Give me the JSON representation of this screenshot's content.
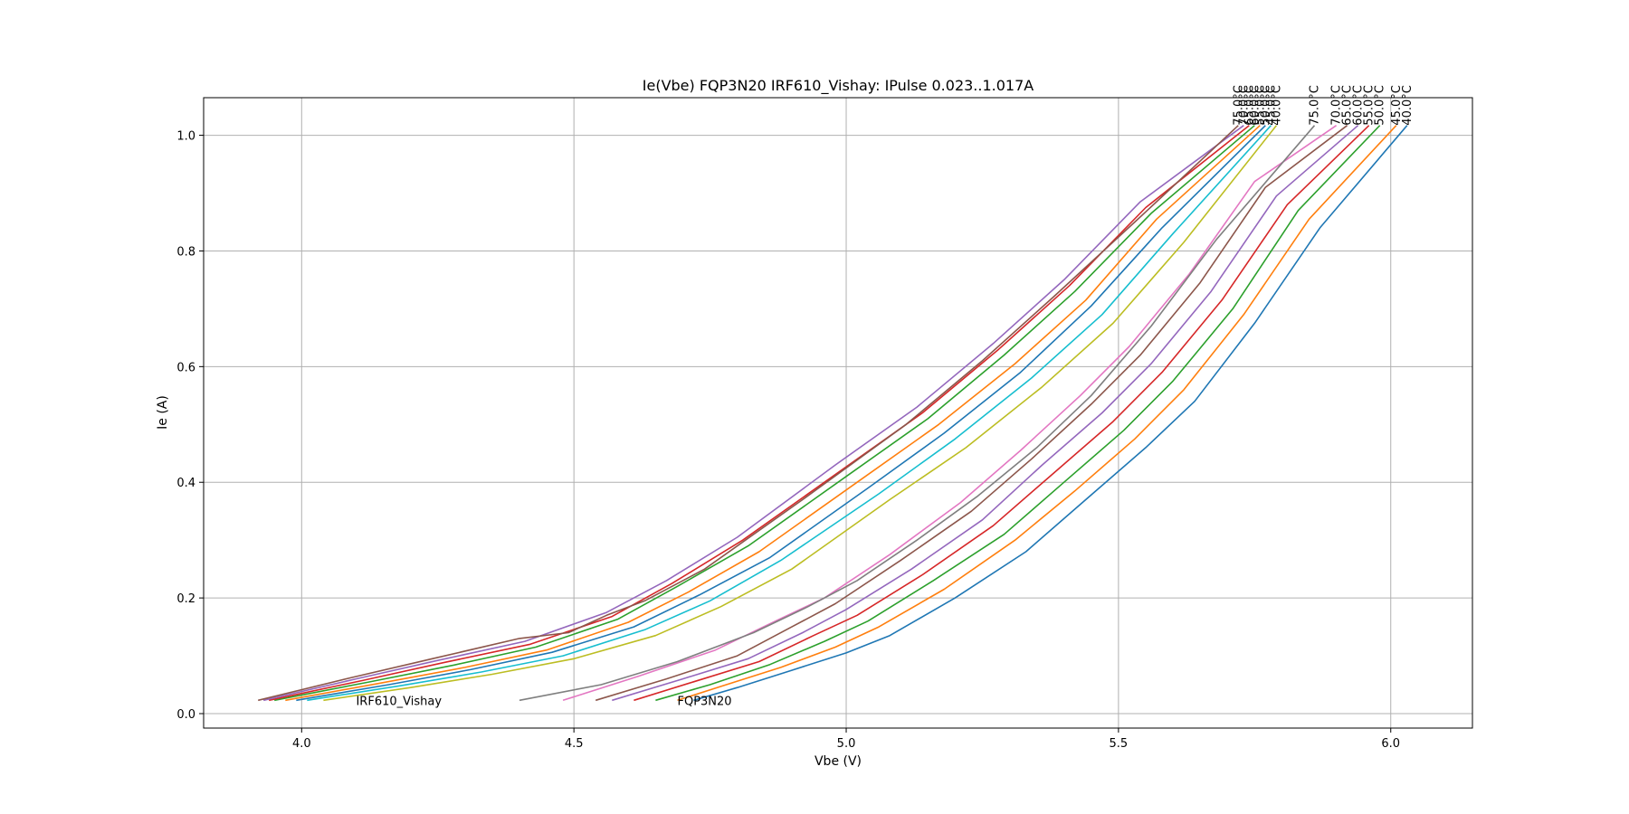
{
  "chart_data": {
    "type": "line",
    "title": "Ie(Vbe) FQP3N20 IRF610_Vishay: IPulse 0.023..1.017A",
    "xlabel": "Vbe (V)",
    "ylabel": "Ie (A)",
    "xlim": [
      3.82,
      6.15
    ],
    "ylim": [
      -0.025,
      1.065
    ],
    "xticks": [
      "4.0",
      "4.5",
      "5.0",
      "5.5",
      "6.0"
    ],
    "yticks": [
      "0.0",
      "0.2",
      "0.4",
      "0.6",
      "0.8",
      "1.0"
    ],
    "grid": true,
    "annotations": [
      {
        "text": "IRF610_Vishay",
        "x": 4.1,
        "y": 0.023
      },
      {
        "text": "FQP3N20",
        "x": 4.69,
        "y": 0.023
      }
    ],
    "series": [
      {
        "group": "FQP3N20",
        "label": "40.0°C",
        "color": "#1f77b4",
        "points": [
          [
            4.72,
            0.023
          ],
          [
            4.8,
            0.045
          ],
          [
            4.9,
            0.075
          ],
          [
            5.0,
            0.105
          ],
          [
            5.08,
            0.135
          ],
          [
            5.2,
            0.2
          ],
          [
            5.33,
            0.28
          ],
          [
            5.44,
            0.37
          ],
          [
            5.55,
            0.46
          ],
          [
            5.64,
            0.54
          ],
          [
            5.75,
            0.675
          ],
          [
            5.87,
            0.84
          ],
          [
            6.03,
            1.017
          ]
        ]
      },
      {
        "group": "FQP3N20",
        "label": "45.0°C",
        "color": "#ff7f0e",
        "points": [
          [
            4.69,
            0.023
          ],
          [
            4.78,
            0.05
          ],
          [
            4.88,
            0.08
          ],
          [
            4.98,
            0.115
          ],
          [
            5.06,
            0.15
          ],
          [
            5.18,
            0.215
          ],
          [
            5.31,
            0.3
          ],
          [
            5.42,
            0.385
          ],
          [
            5.53,
            0.475
          ],
          [
            5.62,
            0.56
          ],
          [
            5.73,
            0.69
          ],
          [
            5.85,
            0.855
          ],
          [
            6.01,
            1.017
          ]
        ]
      },
      {
        "group": "FQP3N20",
        "label": "50.0°C",
        "color": "#2ca02c",
        "points": [
          [
            4.65,
            0.023
          ],
          [
            4.75,
            0.05
          ],
          [
            4.86,
            0.085
          ],
          [
            4.96,
            0.125
          ],
          [
            5.04,
            0.16
          ],
          [
            5.16,
            0.23
          ],
          [
            5.29,
            0.31
          ],
          [
            5.4,
            0.4
          ],
          [
            5.51,
            0.49
          ],
          [
            5.6,
            0.575
          ],
          [
            5.71,
            0.7
          ],
          [
            5.83,
            0.87
          ],
          [
            5.98,
            1.017
          ]
        ]
      },
      {
        "group": "FQP3N20",
        "label": "55.0°C",
        "color": "#d62728",
        "points": [
          [
            4.61,
            0.023
          ],
          [
            4.72,
            0.055
          ],
          [
            4.84,
            0.09
          ],
          [
            4.94,
            0.135
          ],
          [
            5.02,
            0.17
          ],
          [
            5.14,
            0.24
          ],
          [
            5.27,
            0.325
          ],
          [
            5.38,
            0.415
          ],
          [
            5.49,
            0.505
          ],
          [
            5.58,
            0.59
          ],
          [
            5.69,
            0.715
          ],
          [
            5.81,
            0.88
          ],
          [
            5.96,
            1.017
          ]
        ]
      },
      {
        "group": "FQP3N20",
        "label": "60.0°C",
        "color": "#9467bd",
        "points": [
          [
            4.57,
            0.023
          ],
          [
            4.7,
            0.06
          ],
          [
            4.82,
            0.095
          ],
          [
            4.92,
            0.14
          ],
          [
            5.0,
            0.18
          ],
          [
            5.12,
            0.25
          ],
          [
            5.25,
            0.335
          ],
          [
            5.36,
            0.43
          ],
          [
            5.47,
            0.52
          ],
          [
            5.56,
            0.605
          ],
          [
            5.67,
            0.73
          ],
          [
            5.79,
            0.895
          ],
          [
            5.94,
            1.017
          ]
        ]
      },
      {
        "group": "FQP3N20",
        "label": "65.0°C",
        "color": "#8c564b",
        "points": [
          [
            4.54,
            0.023
          ],
          [
            4.67,
            0.06
          ],
          [
            4.8,
            0.1
          ],
          [
            4.9,
            0.15
          ],
          [
            4.98,
            0.19
          ],
          [
            5.1,
            0.265
          ],
          [
            5.23,
            0.35
          ],
          [
            5.34,
            0.44
          ],
          [
            5.45,
            0.535
          ],
          [
            5.54,
            0.62
          ],
          [
            5.65,
            0.745
          ],
          [
            5.77,
            0.91
          ],
          [
            5.92,
            1.017
          ]
        ]
      },
      {
        "group": "FQP3N20",
        "label": "70.0°C",
        "color": "#e377c2",
        "points": [
          [
            4.48,
            0.023
          ],
          [
            4.62,
            0.065
          ],
          [
            4.76,
            0.11
          ],
          [
            4.87,
            0.16
          ],
          [
            4.96,
            0.2
          ],
          [
            5.08,
            0.275
          ],
          [
            5.21,
            0.365
          ],
          [
            5.32,
            0.455
          ],
          [
            5.43,
            0.55
          ],
          [
            5.52,
            0.635
          ],
          [
            5.63,
            0.76
          ],
          [
            5.75,
            0.92
          ],
          [
            5.9,
            1.017
          ]
        ]
      },
      {
        "group": "FQP3N20",
        "label": "75.0°C",
        "color": "#7f7f7f",
        "points": [
          [
            4.4,
            0.023
          ],
          [
            4.55,
            0.05
          ],
          [
            4.69,
            0.09
          ],
          [
            4.83,
            0.14
          ],
          [
            4.93,
            0.185
          ],
          [
            5.02,
            0.23
          ],
          [
            5.13,
            0.3
          ],
          [
            5.24,
            0.375
          ],
          [
            5.35,
            0.46
          ],
          [
            5.45,
            0.55
          ],
          [
            5.56,
            0.67
          ],
          [
            5.68,
            0.82
          ],
          [
            5.86,
            1.017
          ]
        ]
      },
      {
        "group": "IRF610_Vishay",
        "label": "40.0°C",
        "color": "#bcbd22",
        "points": [
          [
            4.04,
            0.023
          ],
          [
            4.2,
            0.045
          ],
          [
            4.35,
            0.068
          ],
          [
            4.5,
            0.095
          ],
          [
            4.65,
            0.135
          ],
          [
            4.77,
            0.185
          ],
          [
            4.9,
            0.25
          ],
          [
            5.08,
            0.37
          ],
          [
            5.22,
            0.46
          ],
          [
            5.36,
            0.565
          ],
          [
            5.49,
            0.675
          ],
          [
            5.62,
            0.815
          ],
          [
            5.79,
            1.017
          ]
        ]
      },
      {
        "group": "IRF610_Vishay",
        "label": "45.0°C",
        "color": "#17becf",
        "points": [
          [
            4.01,
            0.023
          ],
          [
            4.18,
            0.048
          ],
          [
            4.33,
            0.072
          ],
          [
            4.48,
            0.1
          ],
          [
            4.63,
            0.145
          ],
          [
            4.75,
            0.195
          ],
          [
            4.88,
            0.265
          ],
          [
            5.06,
            0.38
          ],
          [
            5.2,
            0.475
          ],
          [
            5.34,
            0.58
          ],
          [
            5.47,
            0.69
          ],
          [
            5.6,
            0.83
          ],
          [
            5.78,
            1.017
          ]
        ]
      },
      {
        "group": "IRF610_Vishay",
        "label": "50.0°C",
        "color": "#1f77b4",
        "points": [
          [
            3.99,
            0.023
          ],
          [
            4.16,
            0.05
          ],
          [
            4.31,
            0.076
          ],
          [
            4.46,
            0.106
          ],
          [
            4.61,
            0.15
          ],
          [
            4.73,
            0.205
          ],
          [
            4.86,
            0.27
          ],
          [
            5.04,
            0.39
          ],
          [
            5.18,
            0.485
          ],
          [
            5.32,
            0.59
          ],
          [
            5.45,
            0.705
          ],
          [
            5.58,
            0.84
          ],
          [
            5.77,
            1.017
          ]
        ]
      },
      {
        "group": "IRF610_Vishay",
        "label": "55.0°C",
        "color": "#ff7f0e",
        "points": [
          [
            3.97,
            0.023
          ],
          [
            4.14,
            0.052
          ],
          [
            4.3,
            0.08
          ],
          [
            4.45,
            0.11
          ],
          [
            4.6,
            0.158
          ],
          [
            4.71,
            0.21
          ],
          [
            4.84,
            0.28
          ],
          [
            5.02,
            0.4
          ],
          [
            5.17,
            0.5
          ],
          [
            5.31,
            0.605
          ],
          [
            5.44,
            0.715
          ],
          [
            5.57,
            0.855
          ],
          [
            5.76,
            1.017
          ]
        ]
      },
      {
        "group": "IRF610_Vishay",
        "label": "60.0°C",
        "color": "#2ca02c",
        "points": [
          [
            3.95,
            0.023
          ],
          [
            4.12,
            0.054
          ],
          [
            4.28,
            0.084
          ],
          [
            4.43,
            0.115
          ],
          [
            4.58,
            0.163
          ],
          [
            4.69,
            0.22
          ],
          [
            4.82,
            0.29
          ],
          [
            5.0,
            0.41
          ],
          [
            5.15,
            0.51
          ],
          [
            5.29,
            0.62
          ],
          [
            5.42,
            0.73
          ],
          [
            5.56,
            0.865
          ],
          [
            5.75,
            1.017
          ]
        ]
      },
      {
        "group": "IRF610_Vishay",
        "label": "65.0°C",
        "color": "#d62728",
        "points": [
          [
            3.94,
            0.023
          ],
          [
            4.11,
            0.057
          ],
          [
            4.26,
            0.088
          ],
          [
            4.42,
            0.12
          ],
          [
            4.57,
            0.168
          ],
          [
            4.68,
            0.225
          ],
          [
            4.81,
            0.3
          ],
          [
            4.99,
            0.42
          ],
          [
            5.14,
            0.52
          ],
          [
            5.28,
            0.63
          ],
          [
            5.41,
            0.74
          ],
          [
            5.55,
            0.875
          ],
          [
            5.74,
            1.017
          ]
        ]
      },
      {
        "group": "IRF610_Vishay",
        "label": "70.0°C",
        "color": "#9467bd",
        "points": [
          [
            3.93,
            0.023
          ],
          [
            4.1,
            0.06
          ],
          [
            4.25,
            0.092
          ],
          [
            4.41,
            0.125
          ],
          [
            4.56,
            0.175
          ],
          [
            4.67,
            0.23
          ],
          [
            4.8,
            0.305
          ],
          [
            4.98,
            0.43
          ],
          [
            5.13,
            0.53
          ],
          [
            5.27,
            0.64
          ],
          [
            5.4,
            0.75
          ],
          [
            5.54,
            0.885
          ],
          [
            5.73,
            1.017
          ]
        ]
      },
      {
        "group": "IRF610_Vishay",
        "label": "75.0°C",
        "color": "#8c564b",
        "points": [
          [
            3.92,
            0.023
          ],
          [
            4.09,
            0.062
          ],
          [
            4.24,
            0.095
          ],
          [
            4.4,
            0.13
          ],
          [
            4.49,
            0.14
          ],
          [
            4.56,
            0.17
          ],
          [
            4.63,
            0.195
          ],
          [
            4.74,
            0.25
          ],
          [
            4.92,
            0.37
          ],
          [
            5.11,
            0.5
          ],
          [
            5.25,
            0.61
          ],
          [
            5.38,
            0.72
          ],
          [
            5.53,
            0.85
          ],
          [
            5.72,
            1.017
          ]
        ]
      }
    ]
  }
}
